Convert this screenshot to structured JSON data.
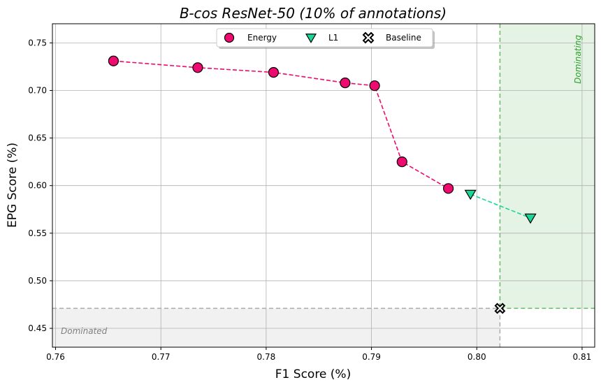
{
  "chart_data": {
    "type": "scatter",
    "title": "B-cos ResNet-50 (10% of annotations)",
    "xlabel": "F1 Score (%)",
    "ylabel": "EPG Score (%)",
    "xlim": [
      0.7597,
      0.8112
    ],
    "ylim": [
      0.4302,
      0.7701
    ],
    "xticks": [
      0.76,
      0.77,
      0.78,
      0.79,
      0.8,
      0.81
    ],
    "xtick_labels": [
      "0.76",
      "0.77",
      "0.78",
      "0.79",
      "0.80",
      "0.81"
    ],
    "yticks": [
      0.45,
      0.5,
      0.55,
      0.6,
      0.65,
      0.7,
      0.75
    ],
    "ytick_labels": [
      "0.45",
      "0.50",
      "0.55",
      "0.60",
      "0.65",
      "0.70",
      "0.75"
    ],
    "grid": true,
    "legend_position": "top-center",
    "series": [
      {
        "name": "Energy",
        "marker": "circle",
        "color": "#ee0a6e",
        "line_style": "dashed",
        "x": [
          0.7655,
          0.7735,
          0.7807,
          0.7875,
          0.7903,
          0.7929,
          0.7973
        ],
        "y": [
          0.731,
          0.724,
          0.719,
          0.708,
          0.705,
          0.625,
          0.597
        ]
      },
      {
        "name": "L1",
        "marker": "triangle-down",
        "color": "#17d897",
        "line_style": "dashed",
        "x": [
          0.7994,
          0.8051
        ],
        "y": [
          0.591,
          0.566
        ]
      },
      {
        "name": "Baseline",
        "marker": "x-filled",
        "color": "#000000",
        "x": [
          0.8022
        ],
        "y": [
          0.471
        ]
      }
    ],
    "regions": {
      "dominating": {
        "label": "Dominating",
        "color": "#2ca02c"
      },
      "dominated": {
        "label": "Dominated",
        "color": "#808080"
      }
    }
  }
}
